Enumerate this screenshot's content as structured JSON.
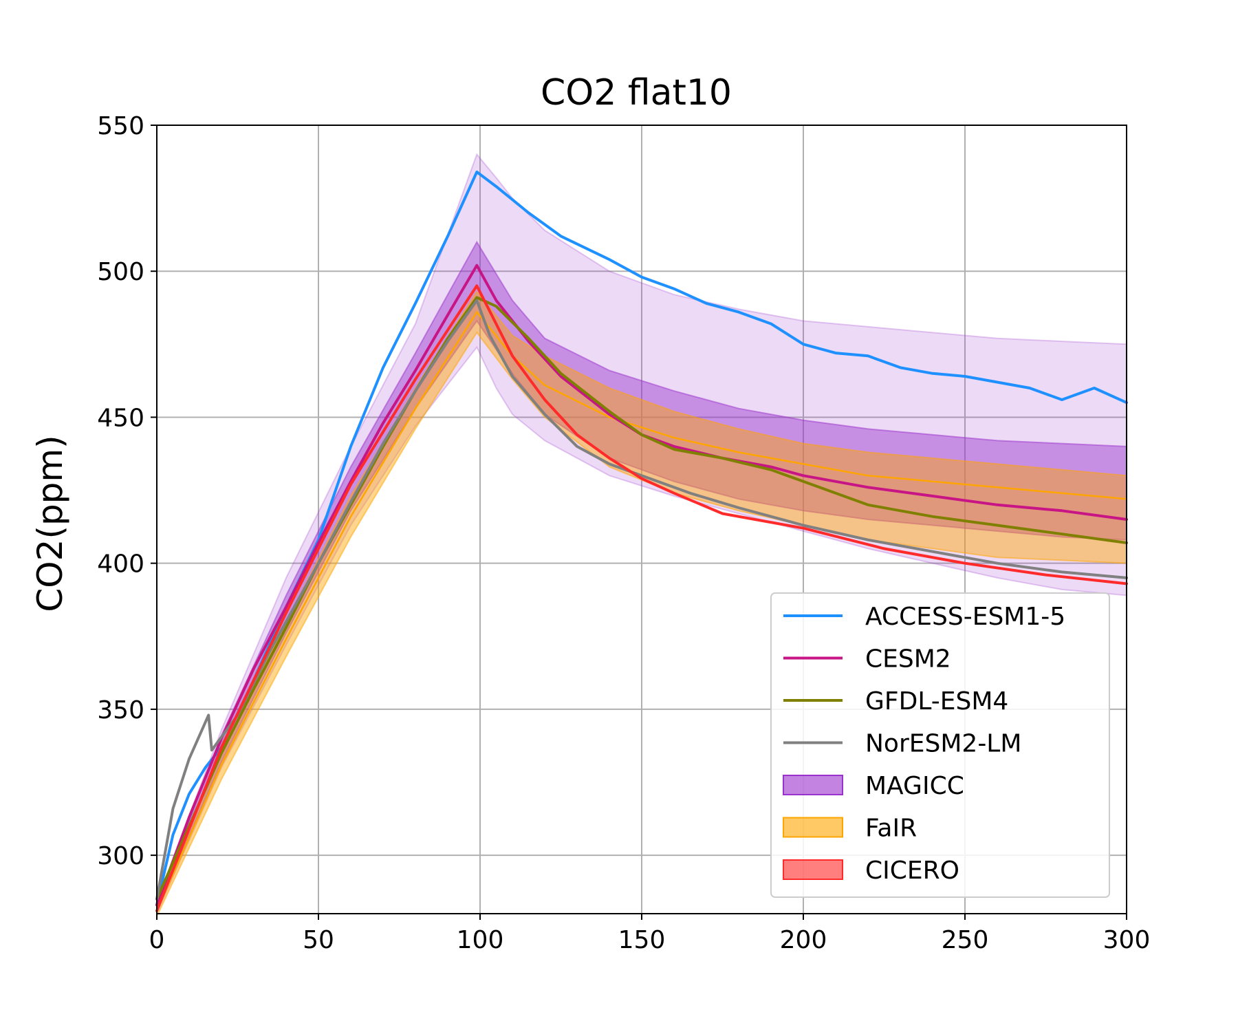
{
  "chart_data": {
    "type": "line",
    "title": "CO2 flat10",
    "xlabel": "",
    "ylabel": "CO2(ppm)",
    "xlim": [
      0,
      300
    ],
    "ylim": [
      280,
      550
    ],
    "xticks": [
      0,
      50,
      100,
      150,
      200,
      250,
      300
    ],
    "yticks": [
      300,
      350,
      400,
      450,
      500,
      550
    ],
    "grid": true,
    "legend_position": "lower-right",
    "series": [
      {
        "name": "ACCESS-ESM1-5",
        "kind": "line",
        "color": "#1e90ff",
        "x": [
          0,
          5,
          10,
          15,
          20,
          30,
          40,
          50,
          60,
          70,
          80,
          90,
          99,
          105,
          115,
          125,
          140,
          150,
          160,
          170,
          180,
          190,
          200,
          210,
          220,
          230,
          240,
          250,
          260,
          270,
          280,
          290,
          300
        ],
        "y": [
          283,
          307,
          321,
          330,
          337,
          360,
          385,
          408,
          440,
          467,
          489,
          512,
          534,
          529,
          520,
          512,
          504,
          498,
          494,
          489,
          486,
          482,
          475,
          472,
          471,
          467,
          465,
          464,
          462,
          460,
          456,
          460,
          455
        ]
      },
      {
        "name": "CESM2",
        "kind": "line",
        "color": "#c71585",
        "x": [
          0,
          10,
          20,
          30,
          40,
          50,
          60,
          70,
          80,
          90,
          99,
          105,
          115,
          125,
          140,
          150,
          160,
          175,
          190,
          200,
          220,
          240,
          260,
          280,
          300
        ],
        "y": [
          283,
          313,
          340,
          364,
          385,
          407,
          428,
          448,
          466,
          485,
          502,
          490,
          476,
          464,
          451,
          444,
          440,
          436,
          433,
          430,
          426,
          423,
          420,
          418,
          415
        ]
      },
      {
        "name": "GFDL-ESM4",
        "kind": "line",
        "color": "#808000",
        "x": [
          0,
          10,
          20,
          30,
          40,
          50,
          60,
          70,
          80,
          90,
          99,
          105,
          115,
          125,
          140,
          150,
          160,
          175,
          190,
          200,
          220,
          240,
          260,
          280,
          300
        ],
        "y": [
          285,
          310,
          335,
          357,
          378,
          400,
          420,
          440,
          459,
          477,
          491,
          488,
          477,
          465,
          452,
          444,
          439,
          436,
          432,
          428,
          420,
          416,
          413,
          410,
          407
        ]
      },
      {
        "name": "NorESM2-LM",
        "kind": "line",
        "color": "#808080",
        "x": [
          0,
          5,
          10,
          16,
          17,
          25,
          35,
          50,
          60,
          70,
          80,
          90,
          99,
          103,
          110,
          120,
          130,
          140,
          150,
          165,
          180,
          200,
          220,
          240,
          260,
          280,
          300
        ],
        "y": [
          285,
          316,
          333,
          348,
          336,
          348,
          370,
          400,
          421,
          441,
          459,
          476,
          490,
          478,
          464,
          451,
          440,
          434,
          430,
          424,
          419,
          413,
          408,
          404,
          400,
          397,
          395
        ]
      },
      {
        "name": "CICERO",
        "kind": "line",
        "color": "#ff2a2a",
        "x": [
          0,
          20,
          40,
          60,
          80,
          99,
          110,
          120,
          130,
          140,
          150,
          160,
          175,
          200,
          225,
          250,
          275,
          300
        ],
        "y": [
          281,
          337,
          383,
          427,
          463,
          495,
          471,
          456,
          444,
          436,
          429,
          424,
          417,
          412,
          405,
          400,
          396,
          393
        ]
      },
      {
        "name": "MAGICC",
        "kind": "band",
        "color": "#9932cc",
        "x": [
          0,
          20,
          40,
          60,
          80,
          99,
          110,
          120,
          140,
          160,
          180,
          200,
          220,
          240,
          260,
          280,
          300
        ],
        "lower": [
          281,
          332,
          376,
          418,
          453,
          483,
          465,
          451,
          436,
          428,
          422,
          418,
          415,
          413,
          411,
          409,
          408
        ],
        "upper": [
          283,
          341,
          389,
          433,
          472,
          510,
          490,
          477,
          466,
          459,
          453,
          449,
          446,
          444,
          442,
          441,
          440
        ]
      },
      {
        "name": "MAGICC",
        "kind": "band-wide",
        "color": "#9932cc",
        "x": [
          0,
          20,
          40,
          60,
          80,
          99,
          105,
          110,
          120,
          140,
          160,
          180,
          200,
          220,
          240,
          260,
          280,
          300
        ],
        "lower": [
          280,
          330,
          372,
          413,
          447,
          474,
          460,
          451,
          442,
          430,
          423,
          417,
          411,
          405,
          400,
          395,
          391,
          389
        ],
        "upper": [
          284,
          343,
          395,
          440,
          482,
          540,
          532,
          525,
          514,
          500,
          492,
          487,
          483,
          481,
          479,
          477,
          476,
          475
        ]
      },
      {
        "name": "FaIR",
        "kind": "band",
        "color": "#ffa500",
        "x": [
          0,
          20,
          40,
          60,
          80,
          99,
          110,
          120,
          140,
          160,
          180,
          200,
          220,
          240,
          260,
          280,
          300
        ],
        "lower": [
          279,
          326,
          368,
          409,
          446,
          479,
          463,
          450,
          433,
          424,
          418,
          413,
          408,
          405,
          402,
          401,
          400
        ],
        "upper": [
          283,
          335,
          380,
          423,
          460,
          493,
          478,
          471,
          460,
          452,
          446,
          441,
          438,
          436,
          434,
          432,
          430
        ]
      },
      {
        "name": "FaIR",
        "kind": "center",
        "color": "#ffa500",
        "x": [
          0,
          20,
          40,
          60,
          80,
          99,
          110,
          120,
          140,
          160,
          180,
          200,
          220,
          240,
          260,
          280,
          300
        ],
        "y": [
          281,
          331,
          374,
          416,
          453,
          486,
          471,
          461,
          450,
          443,
          438,
          434,
          430,
          428,
          426,
          424,
          422
        ]
      }
    ],
    "legend": [
      {
        "label": "ACCESS-ESM1-5",
        "kind": "line",
        "color": "#1e90ff"
      },
      {
        "label": "CESM2",
        "kind": "line",
        "color": "#c71585"
      },
      {
        "label": "GFDL-ESM4",
        "kind": "line",
        "color": "#808000"
      },
      {
        "label": "NorESM2-LM",
        "kind": "line",
        "color": "#808080"
      },
      {
        "label": "MAGICC",
        "kind": "patch",
        "color": "#9932cc"
      },
      {
        "label": "FaIR",
        "kind": "patch",
        "color": "#ffa500"
      },
      {
        "label": "CICERO",
        "kind": "patch",
        "color": "#ff2a2a"
      }
    ]
  }
}
